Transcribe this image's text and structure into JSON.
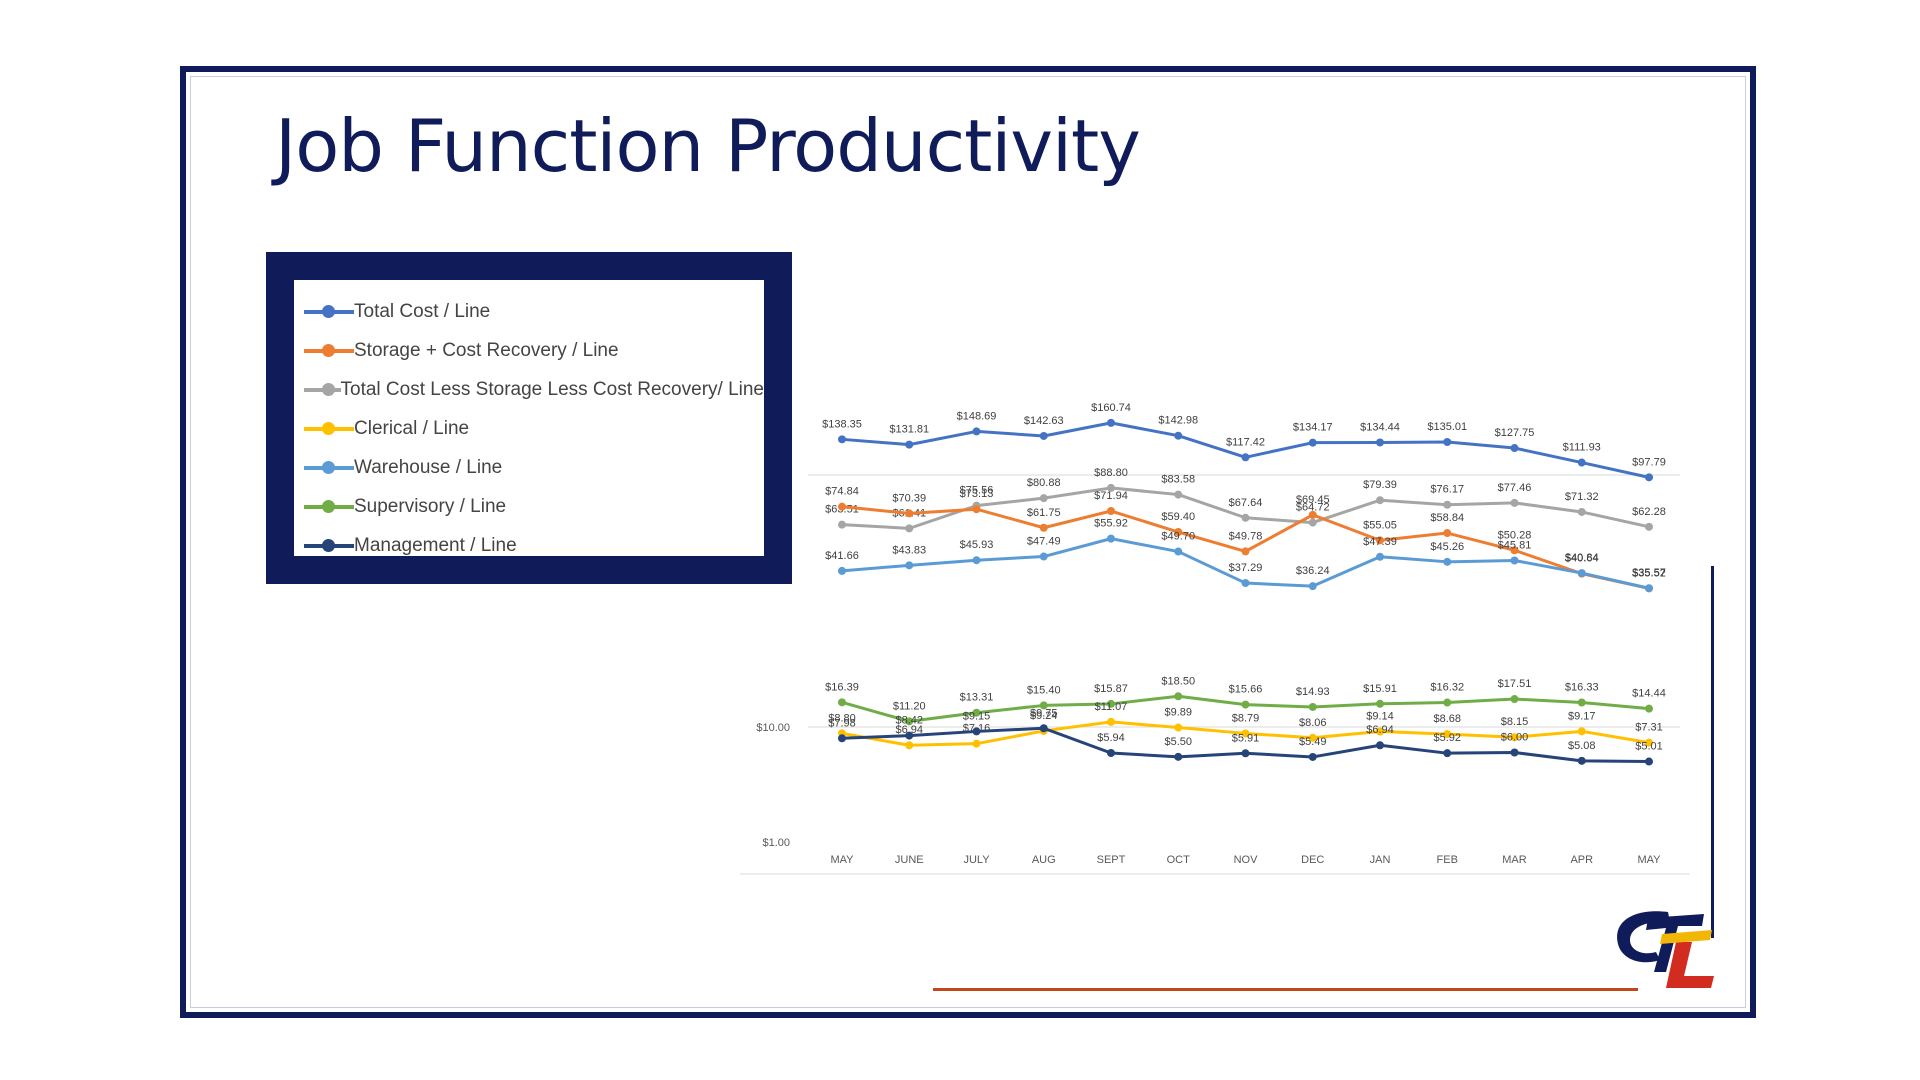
{
  "slide": {
    "title": "Job Function Productivity"
  },
  "legend": [
    {
      "label": "Total Cost / Line",
      "color": "#4472c4"
    },
    {
      "label": "Storage + Cost Recovery / Line",
      "color": "#ed7d31"
    },
    {
      "label": "Total Cost Less Storage Less Cost Recovery/ Line",
      "color": "#a5a5a5"
    },
    {
      "label": "Clerical / Line",
      "color": "#ffc000"
    },
    {
      "label": "Warehouse / Line",
      "color": "#5b9bd5"
    },
    {
      "label": "Supervisory / Line",
      "color": "#70ad47"
    },
    {
      "label": "Management / Line",
      "color": "#264478"
    }
  ],
  "chart_data": {
    "type": "line",
    "yscale": "log",
    "title": "Job Function Productivity",
    "categories": [
      "MAY",
      "JUNE",
      "JULY",
      "AUG",
      "SEPT",
      "OCT",
      "NOV",
      "DEC",
      "JAN",
      "FEB",
      "MAR",
      "APR",
      "MAY"
    ],
    "ytick_labels": [
      "$10.00",
      "$1.00"
    ],
    "yticks": [
      10,
      1
    ],
    "series": [
      {
        "name": "Total Cost / Line",
        "color": "#4472c4",
        "values": [
          138.35,
          131.81,
          148.69,
          142.63,
          160.74,
          142.98,
          117.42,
          134.17,
          134.44,
          135.01,
          127.75,
          111.93,
          97.79
        ],
        "labels": [
          "$138.35",
          "$131.81",
          "$148.69",
          "$142.63",
          "$160.74",
          "$142.98",
          "$117.42",
          "$134.17",
          "$134.44",
          "$135.01",
          "$127.75",
          "$111.93",
          "$97.79"
        ]
      },
      {
        "name": "Total Cost Less Storage Less Cost Recovery/ Line",
        "color": "#a5a5a5",
        "values": [
          63.51,
          61.41,
          75.56,
          80.88,
          88.8,
          83.58,
          67.64,
          64.72,
          79.39,
          76.17,
          77.46,
          71.32,
          62.28
        ],
        "labels": [
          "$63.51",
          "$61.41",
          "$75.56",
          "$80.88",
          "$88.80",
          "$83.58",
          "$67.64",
          "$64.72",
          "$79.39",
          "$76.17",
          "$77.46",
          "$71.32",
          "$62.28"
        ]
      },
      {
        "name": "Storage + Cost Recovery / Line",
        "color": "#ed7d31",
        "values": [
          74.84,
          70.39,
          73.13,
          61.75,
          71.94,
          59.4,
          49.78,
          69.45,
          55.05,
          58.84,
          50.28,
          40.64,
          35.52
        ],
        "labels": [
          "$74.84",
          "$70.39",
          "$73.13",
          "$61.75",
          "$71.94",
          "$59.40",
          "$49.78",
          "$69.45",
          "$55.05",
          "$58.84",
          "$50.28",
          "$40.64",
          "$35.52"
        ]
      },
      {
        "name": "Warehouse / Line",
        "color": "#5b9bd5",
        "values": [
          41.66,
          43.83,
          45.93,
          47.49,
          55.92,
          49.7,
          37.29,
          36.24,
          47.39,
          45.26,
          45.81,
          40.84,
          35.57
        ],
        "labels": [
          "$41.66",
          "$43.83",
          "$45.93",
          "$47.49",
          "$55.92",
          "$49.70",
          "$37.29",
          "$36.24",
          "$47.39",
          "$45.26",
          "$45.81",
          "$40.84",
          "$35.57"
        ]
      },
      {
        "name": "Supervisory / Line",
        "color": "#70ad47",
        "values": [
          16.39,
          11.2,
          13.31,
          15.4,
          15.87,
          18.5,
          15.66,
          14.93,
          15.91,
          16.32,
          17.51,
          16.33,
          14.44
        ],
        "labels": [
          "$16.39",
          "$11.20",
          "$13.31",
          "$15.40",
          "$15.87",
          "$18.50",
          "$15.66",
          "$14.93",
          "$15.91",
          "$16.32",
          "$17.51",
          "$16.33",
          "$14.44"
        ]
      },
      {
        "name": "Clerical / Line",
        "color": "#ffc000",
        "values": [
          8.8,
          6.94,
          7.16,
          9.24,
          11.07,
          9.89,
          8.79,
          8.06,
          9.14,
          8.68,
          8.15,
          9.17,
          7.31
        ],
        "labels": [
          "$8.80",
          "$6.94",
          "$7.16",
          "$9.24",
          "$11.07",
          "$9.89",
          "$8.79",
          "$8.06",
          "$9.14",
          "$8.68",
          "$8.15",
          "$9.17",
          "$7.31"
        ]
      },
      {
        "name": "Management / Line",
        "color": "#264478",
        "values": [
          7.98,
          8.42,
          9.15,
          9.75,
          5.94,
          5.5,
          5.91,
          5.49,
          6.94,
          5.92,
          6.0,
          5.08,
          5.01
        ],
        "labels": [
          "$7.98",
          "$8.42",
          "$9.15",
          "$9.75",
          "$5.94",
          "$5.50",
          "$5.91",
          "$5.49",
          "$6.94",
          "$5.92",
          "$6.00",
          "$5.08",
          "$5.01"
        ]
      }
    ]
  }
}
